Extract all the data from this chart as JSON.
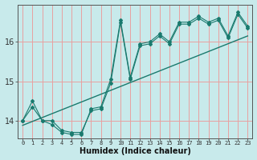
{
  "xlabel": "Humidex (Indice chaleur)",
  "bg_color": "#c8eaeb",
  "line_color": "#1a7a6e",
  "grid_color": "#e8a0a0",
  "x_data": [
    0,
    1,
    2,
    3,
    4,
    5,
    6,
    7,
    8,
    9,
    10,
    11,
    12,
    13,
    14,
    15,
    16,
    17,
    18,
    19,
    20,
    21,
    22,
    23
  ],
  "y_line1": [
    14.0,
    14.5,
    14.0,
    13.9,
    13.7,
    13.65,
    13.65,
    14.3,
    14.35,
    15.05,
    16.55,
    15.1,
    15.95,
    16.0,
    16.2,
    16.0,
    16.5,
    16.5,
    16.65,
    16.5,
    16.6,
    16.15,
    16.75,
    16.4
  ],
  "y_line2": [
    14.0,
    14.35,
    14.0,
    14.0,
    13.75,
    13.7,
    13.7,
    14.25,
    14.3,
    14.95,
    16.5,
    15.05,
    15.9,
    15.95,
    16.15,
    15.95,
    16.45,
    16.45,
    16.6,
    16.45,
    16.55,
    16.1,
    16.7,
    16.35
  ],
  "trend_x": [
    0,
    23
  ],
  "trend_y": [
    13.88,
    16.15
  ],
  "ylim": [
    13.55,
    16.95
  ],
  "xlim": [
    -0.5,
    23.5
  ],
  "xticks": [
    0,
    1,
    2,
    3,
    4,
    5,
    6,
    7,
    8,
    9,
    10,
    11,
    12,
    13,
    14,
    15,
    16,
    17,
    18,
    19,
    20,
    21,
    22,
    23
  ],
  "yticks": [
    14,
    15,
    16
  ]
}
